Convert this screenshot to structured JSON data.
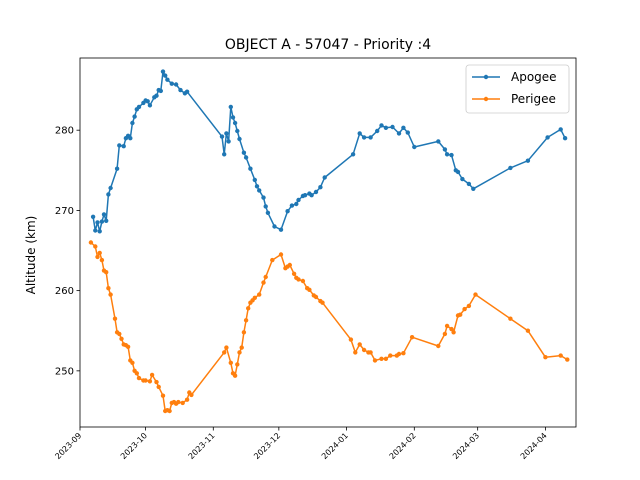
{
  "chart_data": {
    "type": "line",
    "title": "OBJECT A - 57047 - Priority :4",
    "xlabel": "",
    "ylabel": "Altitude (km)",
    "xlim": [
      "2023-09-01",
      "2024-04-15"
    ],
    "ylim": [
      243,
      289
    ],
    "x_ticks": [
      "2023-09",
      "2023-10",
      "2023-11",
      "2023-12",
      "2024-01",
      "2024-02",
      "2024-03",
      "2024-04"
    ],
    "x_tick_dates": [
      "2023-09-01",
      "2023-10-01",
      "2023-11-01",
      "2023-12-01",
      "2024-01-01",
      "2024-02-01",
      "2024-03-01",
      "2024-04-01"
    ],
    "y_ticks": [
      250,
      260,
      270,
      280
    ],
    "legend": {
      "position": "top-right"
    },
    "grid": false,
    "series": [
      {
        "name": "Apogee",
        "color": "#1f77b4",
        "points": [
          [
            "2023-09-07",
            269.2
          ],
          [
            "2023-09-08",
            267.5
          ],
          [
            "2023-09-09",
            268.5
          ],
          [
            "2023-09-10",
            267.4
          ],
          [
            "2023-09-11",
            268.6
          ],
          [
            "2023-09-12",
            269.5
          ],
          [
            "2023-09-13",
            268.7
          ],
          [
            "2023-09-14",
            272.0
          ],
          [
            "2023-09-15",
            272.8
          ],
          [
            "2023-09-18",
            275.2
          ],
          [
            "2023-09-19",
            278.1
          ],
          [
            "2023-09-21",
            278.0
          ],
          [
            "2023-09-22",
            279.0
          ],
          [
            "2023-09-23",
            279.3
          ],
          [
            "2023-09-24",
            279.0
          ],
          [
            "2023-09-25",
            280.9
          ],
          [
            "2023-09-26",
            281.7
          ],
          [
            "2023-09-27",
            282.6
          ],
          [
            "2023-09-28",
            282.9
          ],
          [
            "2023-09-30",
            283.4
          ],
          [
            "2023-10-01",
            283.7
          ],
          [
            "2023-10-02",
            283.6
          ],
          [
            "2023-10-03",
            283.1
          ],
          [
            "2023-10-05",
            284.1
          ],
          [
            "2023-10-06",
            284.3
          ],
          [
            "2023-10-07",
            285.0
          ],
          [
            "2023-10-08",
            284.9
          ],
          [
            "2023-10-09",
            287.3
          ],
          [
            "2023-10-10",
            286.8
          ],
          [
            "2023-10-11",
            286.3
          ],
          [
            "2023-10-13",
            285.8
          ],
          [
            "2023-10-15",
            285.7
          ],
          [
            "2023-10-17",
            285.0
          ],
          [
            "2023-10-19",
            284.6
          ],
          [
            "2023-10-20",
            284.8
          ],
          [
            "2023-11-05",
            279.2
          ],
          [
            "2023-11-06",
            277.0
          ],
          [
            "2023-11-07",
            279.6
          ],
          [
            "2023-11-08",
            278.6
          ],
          [
            "2023-11-09",
            282.9
          ],
          [
            "2023-11-10",
            281.6
          ],
          [
            "2023-11-11",
            280.9
          ],
          [
            "2023-11-12",
            279.9
          ],
          [
            "2023-11-13",
            278.9
          ],
          [
            "2023-11-15",
            277.2
          ],
          [
            "2023-11-16",
            276.6
          ],
          [
            "2023-11-18",
            275.2
          ],
          [
            "2023-11-20",
            273.8
          ],
          [
            "2023-11-21",
            273.0
          ],
          [
            "2023-11-22",
            272.5
          ],
          [
            "2023-11-24",
            271.6
          ],
          [
            "2023-11-25",
            270.5
          ],
          [
            "2023-11-26",
            269.7
          ],
          [
            "2023-11-29",
            268.0
          ],
          [
            "2023-12-02",
            267.6
          ],
          [
            "2023-12-05",
            269.9
          ],
          [
            "2023-12-07",
            270.6
          ],
          [
            "2023-12-09",
            270.8
          ],
          [
            "2023-12-10",
            271.3
          ],
          [
            "2023-12-12",
            271.8
          ],
          [
            "2023-12-13",
            271.9
          ],
          [
            "2023-12-15",
            272.1
          ],
          [
            "2023-12-16",
            271.9
          ],
          [
            "2023-12-18",
            272.3
          ],
          [
            "2023-12-20",
            272.9
          ],
          [
            "2023-12-22",
            274.1
          ],
          [
            "2024-01-04",
            277.0
          ],
          [
            "2024-01-07",
            279.6
          ],
          [
            "2024-01-09",
            279.1
          ],
          [
            "2024-01-12",
            279.1
          ],
          [
            "2024-01-15",
            279.9
          ],
          [
            "2024-01-17",
            280.6
          ],
          [
            "2024-01-19",
            280.3
          ],
          [
            "2024-01-22",
            280.4
          ],
          [
            "2024-01-25",
            279.6
          ],
          [
            "2024-01-27",
            280.3
          ],
          [
            "2024-01-29",
            279.7
          ],
          [
            "2024-02-01",
            277.9
          ],
          [
            "2024-02-12",
            278.6
          ],
          [
            "2024-02-15",
            277.6
          ],
          [
            "2024-02-16",
            277.0
          ],
          [
            "2024-02-18",
            276.9
          ],
          [
            "2024-02-20",
            275.0
          ],
          [
            "2024-02-21",
            274.8
          ],
          [
            "2024-02-23",
            273.9
          ],
          [
            "2024-02-26",
            273.3
          ],
          [
            "2024-02-28",
            272.7
          ],
          [
            "2024-03-16",
            275.3
          ],
          [
            "2024-03-24",
            276.2
          ],
          [
            "2024-04-02",
            279.1
          ],
          [
            "2024-04-08",
            280.1
          ],
          [
            "2024-04-10",
            279.0
          ]
        ]
      },
      {
        "name": "Perigee",
        "color": "#ff7f0e",
        "points": [
          [
            "2023-09-06",
            266.0
          ],
          [
            "2023-09-08",
            265.5
          ],
          [
            "2023-09-09",
            264.2
          ],
          [
            "2023-09-10",
            264.7
          ],
          [
            "2023-09-11",
            263.8
          ],
          [
            "2023-09-12",
            262.5
          ],
          [
            "2023-09-13",
            262.3
          ],
          [
            "2023-09-14",
            260.3
          ],
          [
            "2023-09-15",
            259.5
          ],
          [
            "2023-09-17",
            256.5
          ],
          [
            "2023-09-18",
            254.8
          ],
          [
            "2023-09-19",
            254.6
          ],
          [
            "2023-09-20",
            254.0
          ],
          [
            "2023-09-21",
            253.3
          ],
          [
            "2023-09-22",
            253.2
          ],
          [
            "2023-09-23",
            253.0
          ],
          [
            "2023-09-24",
            251.3
          ],
          [
            "2023-09-25",
            251.0
          ],
          [
            "2023-09-26",
            250.0
          ],
          [
            "2023-09-27",
            249.7
          ],
          [
            "2023-09-28",
            249.1
          ],
          [
            "2023-09-30",
            248.8
          ],
          [
            "2023-10-01",
            248.8
          ],
          [
            "2023-10-03",
            248.7
          ],
          [
            "2023-10-04",
            249.5
          ],
          [
            "2023-10-06",
            248.6
          ],
          [
            "2023-10-07",
            248.0
          ],
          [
            "2023-10-09",
            246.9
          ],
          [
            "2023-10-10",
            245.0
          ],
          [
            "2023-10-11",
            245.1
          ],
          [
            "2023-10-12",
            245.0
          ],
          [
            "2023-10-13",
            246.0
          ],
          [
            "2023-10-14",
            246.1
          ],
          [
            "2023-10-15",
            245.9
          ],
          [
            "2023-10-16",
            246.1
          ],
          [
            "2023-10-18",
            246.0
          ],
          [
            "2023-10-20",
            246.4
          ],
          [
            "2023-10-21",
            247.3
          ],
          [
            "2023-10-22",
            247.0
          ],
          [
            "2023-11-06",
            252.3
          ],
          [
            "2023-11-07",
            252.9
          ],
          [
            "2023-11-09",
            251.0
          ],
          [
            "2023-11-10",
            249.7
          ],
          [
            "2023-11-11",
            249.4
          ],
          [
            "2023-11-12",
            250.8
          ],
          [
            "2023-11-13",
            252.3
          ],
          [
            "2023-11-14",
            252.9
          ],
          [
            "2023-11-15",
            254.8
          ],
          [
            "2023-11-16",
            256.3
          ],
          [
            "2023-11-17",
            257.8
          ],
          [
            "2023-11-18",
            258.5
          ],
          [
            "2023-11-19",
            258.8
          ],
          [
            "2023-11-20",
            259.1
          ],
          [
            "2023-11-22",
            259.5
          ],
          [
            "2023-11-24",
            261.0
          ],
          [
            "2023-11-25",
            261.7
          ],
          [
            "2023-11-28",
            263.8
          ],
          [
            "2023-12-02",
            264.5
          ],
          [
            "2023-12-04",
            262.8
          ],
          [
            "2023-12-05",
            263.0
          ],
          [
            "2023-12-06",
            263.2
          ],
          [
            "2023-12-08",
            262.1
          ],
          [
            "2023-12-09",
            261.6
          ],
          [
            "2023-12-10",
            261.4
          ],
          [
            "2023-12-12",
            261.2
          ],
          [
            "2023-12-14",
            260.3
          ],
          [
            "2023-12-15",
            260.1
          ],
          [
            "2023-12-17",
            259.4
          ],
          [
            "2023-12-18",
            259.2
          ],
          [
            "2023-12-20",
            258.7
          ],
          [
            "2023-12-21",
            258.5
          ],
          [
            "2024-01-03",
            253.9
          ],
          [
            "2024-01-05",
            252.3
          ],
          [
            "2024-01-07",
            253.3
          ],
          [
            "2024-01-09",
            252.6
          ],
          [
            "2024-01-11",
            252.3
          ],
          [
            "2024-01-12",
            252.3
          ],
          [
            "2024-01-14",
            251.3
          ],
          [
            "2024-01-17",
            251.5
          ],
          [
            "2024-01-19",
            251.5
          ],
          [
            "2024-01-21",
            251.9
          ],
          [
            "2024-01-24",
            251.9
          ],
          [
            "2024-01-25",
            252.1
          ],
          [
            "2024-01-27",
            252.2
          ],
          [
            "2024-01-31",
            254.2
          ],
          [
            "2024-02-12",
            253.1
          ],
          [
            "2024-02-15",
            254.6
          ],
          [
            "2024-02-16",
            255.6
          ],
          [
            "2024-02-18",
            255.2
          ],
          [
            "2024-02-19",
            254.8
          ],
          [
            "2024-02-21",
            256.9
          ],
          [
            "2024-02-22",
            257.0
          ],
          [
            "2024-02-24",
            257.7
          ],
          [
            "2024-02-26",
            258.1
          ],
          [
            "2024-02-29",
            259.5
          ],
          [
            "2024-03-16",
            256.5
          ],
          [
            "2024-03-24",
            255.0
          ],
          [
            "2024-04-01",
            251.7
          ],
          [
            "2024-04-08",
            251.9
          ],
          [
            "2024-04-11",
            251.4
          ]
        ]
      }
    ]
  }
}
